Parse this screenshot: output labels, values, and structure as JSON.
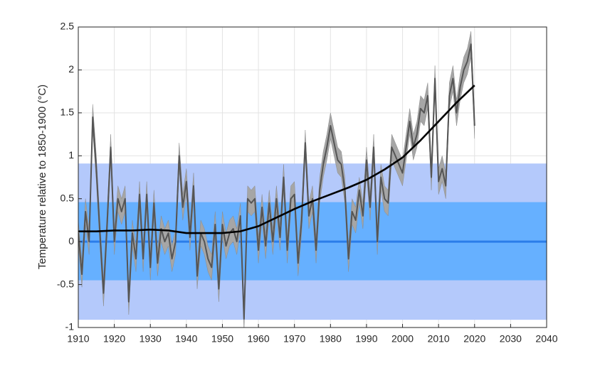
{
  "chart_data": {
    "type": "line",
    "y_label": "Temperature relative to 1850-1900 (°C)",
    "xlim": [
      1910,
      2040
    ],
    "xticks": [
      1910,
      1920,
      1930,
      1940,
      1950,
      1960,
      1970,
      1980,
      1990,
      2000,
      2010,
      2020,
      2030,
      2040
    ],
    "ylim": [
      -1,
      2.5
    ],
    "yticks": [
      -1,
      -0.5,
      0,
      0.5,
      1,
      1.5,
      2,
      2.5
    ],
    "grid": true,
    "bands": [
      {
        "lower": -0.91,
        "upper": 0.91,
        "color": "#b4c9fb"
      },
      {
        "lower": -0.45,
        "upper": 0.46,
        "color": "#66b0ff"
      }
    ],
    "reference_line": {
      "value": 0,
      "color": "#2b7de9"
    },
    "series": [
      {
        "color": "#555555",
        "band_color": "#a6a6a6",
        "error": 0.15,
        "x": [
          1910,
          1911,
          1912,
          1913,
          1914,
          1915,
          1916,
          1917,
          1918,
          1919,
          1920,
          1921,
          1922,
          1923,
          1924,
          1925,
          1926,
          1927,
          1928,
          1929,
          1930,
          1931,
          1932,
          1933,
          1934,
          1935,
          1936,
          1937,
          1938,
          1939,
          1940,
          1941,
          1942,
          1943,
          1944,
          1945,
          1946,
          1947,
          1948,
          1949,
          1950,
          1951,
          1952,
          1953,
          1954,
          1955,
          1956,
          1957,
          1958,
          1959,
          1960,
          1961,
          1962,
          1963,
          1964,
          1965,
          1966,
          1967,
          1968,
          1969,
          1970,
          1971,
          1972,
          1973,
          1974,
          1975,
          1976,
          1977,
          1978,
          1979,
          1980,
          1981,
          1982,
          1983,
          1984,
          1985,
          1986,
          1987,
          1988,
          1989,
          1990,
          1991,
          1992,
          1993,
          1994,
          1995,
          1996,
          1997,
          1998,
          1999,
          2000,
          2001,
          2002,
          2003,
          2004,
          2005,
          2006,
          2007,
          2008,
          2009,
          2010,
          2011,
          2012,
          2013,
          2014,
          2015,
          2016,
          2017,
          2018,
          2019,
          2020
        ],
        "values": [
          0.1,
          -0.38,
          0.35,
          0.0,
          1.45,
          0.85,
          0.1,
          -0.6,
          0.2,
          1.1,
          0.0,
          0.5,
          0.35,
          0.5,
          -0.7,
          0.1,
          -0.2,
          0.55,
          -0.2,
          0.55,
          -0.3,
          0.45,
          -0.25,
          0.15,
          0.0,
          0.1,
          -0.2,
          0.0,
          1.0,
          0.4,
          0.7,
          0.05,
          0.65,
          -0.4,
          0.1,
          0.0,
          -0.2,
          -0.3,
          0.2,
          -0.55,
          0.2,
          -0.05,
          0.1,
          0.15,
          0.0,
          0.3,
          -0.9,
          0.5,
          0.45,
          0.5,
          -0.1,
          0.4,
          -0.05,
          0.45,
          0.0,
          0.5,
          0.05,
          0.75,
          -0.1,
          0.5,
          0.55,
          -0.25,
          0.25,
          1.15,
          0.3,
          0.5,
          -0.1,
          0.6,
          0.9,
          1.1,
          1.35,
          1.15,
          0.95,
          0.9,
          0.6,
          -0.2,
          0.35,
          0.25,
          0.6,
          0.3,
          0.95,
          0.4,
          1.1,
          0.0,
          0.75,
          0.5,
          0.45,
          1.1,
          1.0,
          0.9,
          0.8,
          1.1,
          1.4,
          1.1,
          1.25,
          1.55,
          1.5,
          1.7,
          0.75,
          1.9,
          0.7,
          0.85,
          0.65,
          1.7,
          1.9,
          1.5,
          1.8,
          2.0,
          2.1,
          2.3,
          1.35
        ]
      },
      {
        "color": "#000000",
        "x": [
          1910,
          1915,
          1920,
          1925,
          1930,
          1935,
          1940,
          1945,
          1950,
          1955,
          1960,
          1965,
          1970,
          1975,
          1980,
          1985,
          1990,
          1995,
          2000,
          2005,
          2010,
          2015,
          2020
        ],
        "values": [
          0.12,
          0.12,
          0.13,
          0.13,
          0.14,
          0.13,
          0.1,
          0.1,
          0.1,
          0.12,
          0.18,
          0.28,
          0.38,
          0.47,
          0.55,
          0.63,
          0.72,
          0.84,
          0.98,
          1.18,
          1.4,
          1.62,
          1.82
        ]
      }
    ]
  }
}
